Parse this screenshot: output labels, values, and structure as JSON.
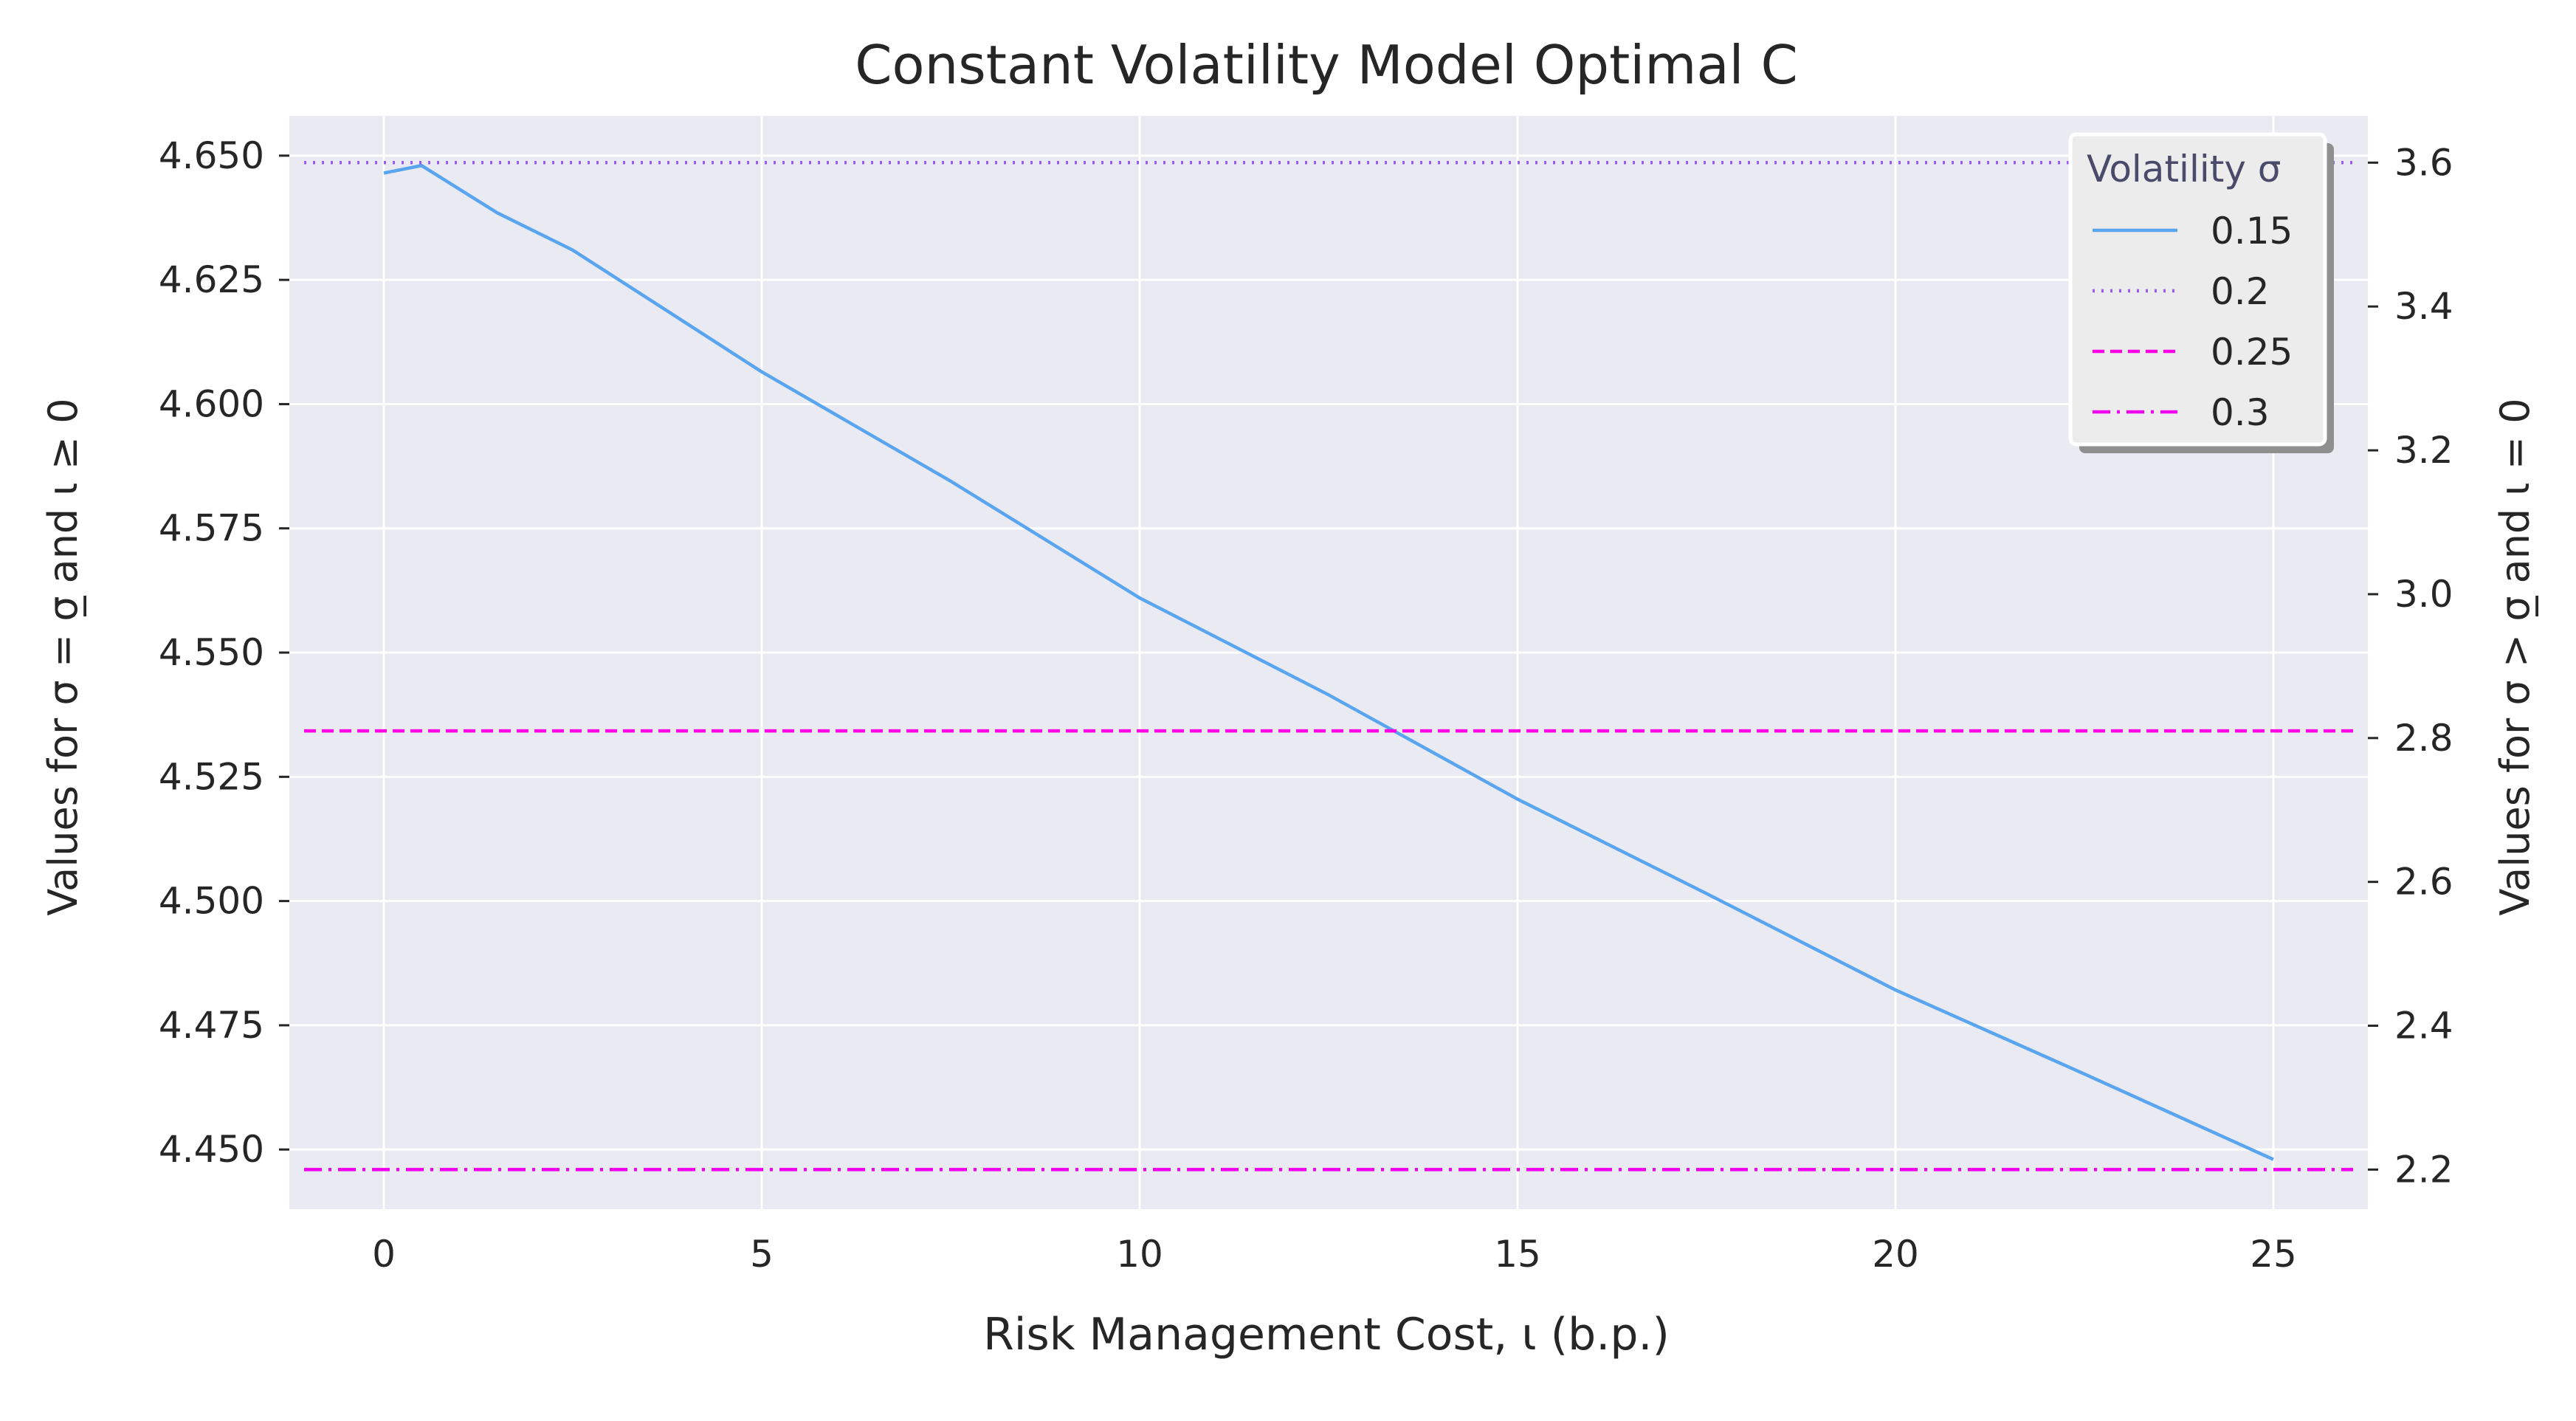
{
  "chart_data": {
    "type": "line",
    "title": "Constant Volatility Model Optimal C",
    "xlabel": "Risk Management Cost, ι (b.p.)",
    "ylabel_left": "Values for σ = σ̲ and ι ≥ 0",
    "ylabel_right": "Values for σ > σ̲ and ι = 0",
    "xlim": [
      -1.25,
      26.25
    ],
    "ylim_left": [
      4.438,
      4.658
    ],
    "ylim_right": [
      2.145,
      3.665
    ],
    "xticks": [
      0,
      5,
      10,
      15,
      20,
      25
    ],
    "xtick_labels": [
      "0",
      "5",
      "10",
      "15",
      "20",
      "25"
    ],
    "yticks_left": [
      4.45,
      4.475,
      4.5,
      4.525,
      4.55,
      4.575,
      4.6,
      4.625,
      4.65
    ],
    "ytick_labels_left": [
      "4.450",
      "4.475",
      "4.500",
      "4.525",
      "4.550",
      "4.575",
      "4.600",
      "4.625",
      "4.650"
    ],
    "yticks_right": [
      2.2,
      2.4,
      2.6,
      2.8,
      3.0,
      3.2,
      3.4,
      3.6
    ],
    "ytick_labels_right": [
      "2.2",
      "2.4",
      "2.6",
      "2.8",
      "3.0",
      "3.2",
      "3.4",
      "3.6"
    ],
    "grid": true,
    "legend": {
      "title": "Volatility σ",
      "placement": "top-right"
    },
    "series": [
      {
        "name": "0.15",
        "axis": "left",
        "style": "solid",
        "color": "#5aa5f0",
        "x": [
          0,
          0.5,
          1.5,
          2.5,
          5,
          7.5,
          10,
          12.5,
          15,
          17.5,
          20,
          22.5,
          25
        ],
        "y": [
          4.6465,
          4.648,
          4.6385,
          4.631,
          4.6065,
          4.5845,
          4.561,
          4.5415,
          4.5205,
          4.5015,
          4.4821,
          4.4652,
          4.448
        ]
      },
      {
        "name": "0.2",
        "axis": "right",
        "style": "dotted",
        "color": "#9b59f0",
        "x": [
          -1.25,
          26.25
        ],
        "y": [
          3.6,
          3.6
        ]
      },
      {
        "name": "0.25",
        "axis": "right",
        "style": "dashed",
        "color": "#ff00e6",
        "x": [
          -1.25,
          26.25
        ],
        "y": [
          2.81,
          2.81
        ]
      },
      {
        "name": "0.3",
        "axis": "right",
        "style": "dashdot",
        "color": "#f000f0",
        "x": [
          -1.25,
          26.25
        ],
        "y": [
          2.2,
          2.2
        ]
      }
    ]
  },
  "colors": {
    "plot_background": "#eaeaf2",
    "grid": "#ffffff",
    "text": "#262626"
  }
}
